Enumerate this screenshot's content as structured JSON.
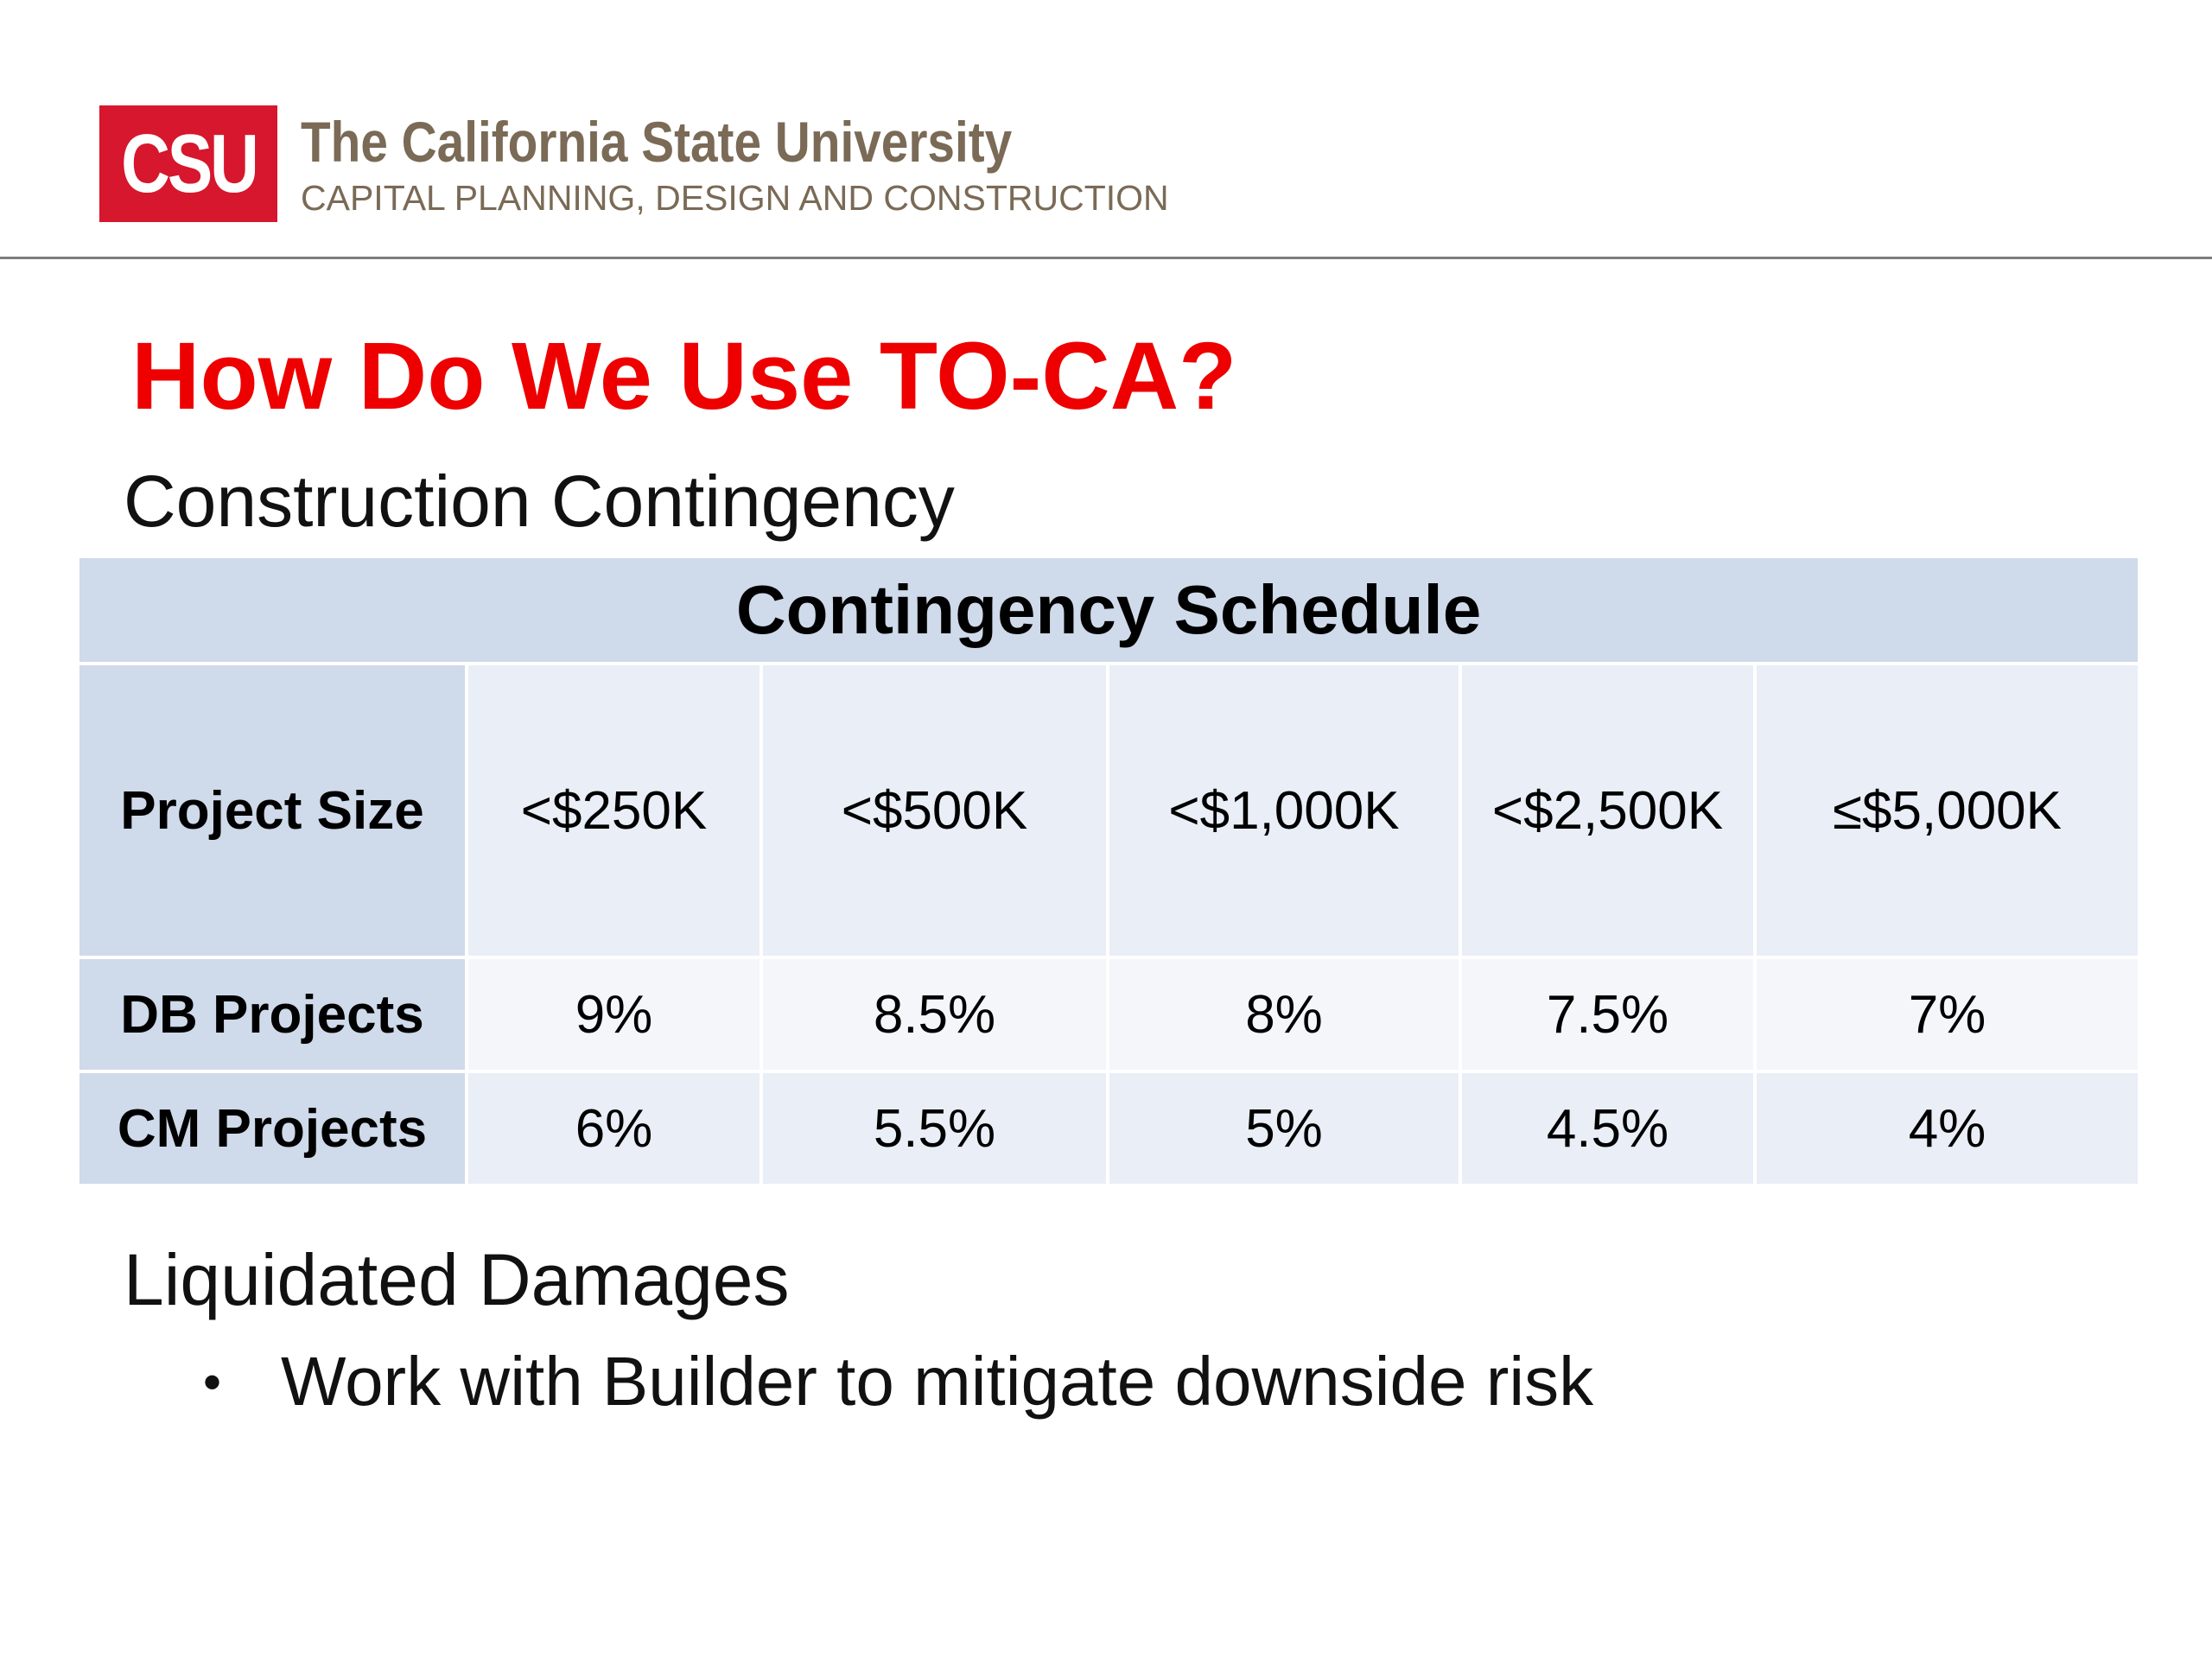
{
  "header": {
    "logo_text": "CSU",
    "university": "The California State University",
    "department": "CAPITAL PLANNING, DESIGN AND CONSTRUCTION",
    "logo_color": "#d6172d",
    "title_color": "#ee0000"
  },
  "slide": {
    "title": "How Do We Use TO-CA?",
    "section1": "Construction Contingency",
    "section2": "Liquidated Damages",
    "bullets": [
      "Work with Builder to mitigate downside risk"
    ]
  },
  "table": {
    "caption": "Contingency Schedule",
    "rows": [
      {
        "label": "Project Size",
        "cells": [
          "<$250K",
          "<$500K",
          "<$1,000K",
          "<$2,500K",
          "≤$5,000K"
        ]
      },
      {
        "label": "DB Projects",
        "cells": [
          "9%",
          "8.5%",
          "8%",
          "7.5%",
          "7%"
        ]
      },
      {
        "label": "CM Projects",
        "cells": [
          "6%",
          "5.5%",
          "5%",
          "4.5%",
          "4%"
        ]
      }
    ]
  }
}
